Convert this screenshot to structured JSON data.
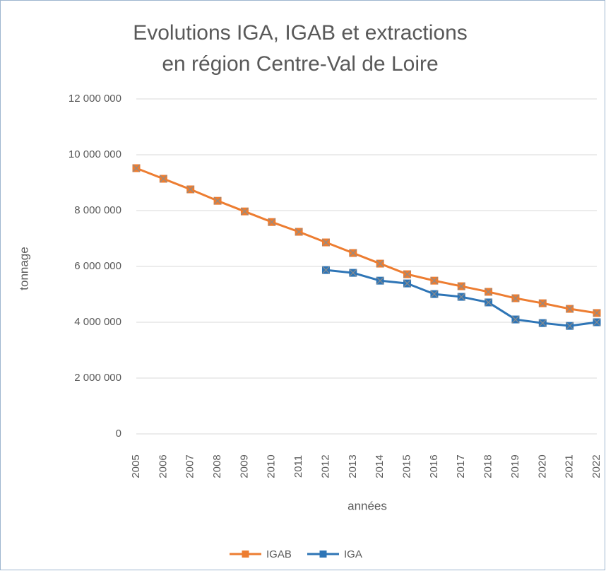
{
  "chart_data": {
    "type": "line",
    "title": [
      "Evolutions IGA, IGAB et extractions",
      "en région Centre-Val de Loire"
    ],
    "x_label": "années",
    "y_label": "tonnage",
    "categories": [
      "2005",
      "2006",
      "2007",
      "2008",
      "2009",
      "2010",
      "2011",
      "2012",
      "2013",
      "2014",
      "2015",
      "2016",
      "2017",
      "2018",
      "2019",
      "2020",
      "2021",
      "2022"
    ],
    "series": [
      {
        "name": "IGAB",
        "color": "#ed7d31",
        "values": [
          9520000,
          9140000,
          8760000,
          8350000,
          7970000,
          7590000,
          7240000,
          6860000,
          6480000,
          6100000,
          5720000,
          5490000,
          5290000,
          5090000,
          4860000,
          4680000,
          4480000,
          4330000
        ]
      },
      {
        "name": "IGA",
        "color": "#2e75b6",
        "values": [
          null,
          null,
          null,
          null,
          null,
          null,
          null,
          5870000,
          5770000,
          5490000,
          5390000,
          5010000,
          4910000,
          4710000,
          4100000,
          3970000,
          3870000,
          4000000
        ]
      }
    ],
    "ylim": [
      0,
      12000000
    ],
    "yticks": [
      {
        "value": 0,
        "label": "0"
      },
      {
        "value": 2000000,
        "label": "2 000 000"
      },
      {
        "value": 4000000,
        "label": "4 000 000"
      },
      {
        "value": 6000000,
        "label": "6 000 000"
      },
      {
        "value": 8000000,
        "label": "8 000 000"
      },
      {
        "value": 10000000,
        "label": "10 000 000"
      },
      {
        "value": 12000000,
        "label": "12 000 000"
      }
    ],
    "grid": true,
    "legend": "bottom"
  }
}
